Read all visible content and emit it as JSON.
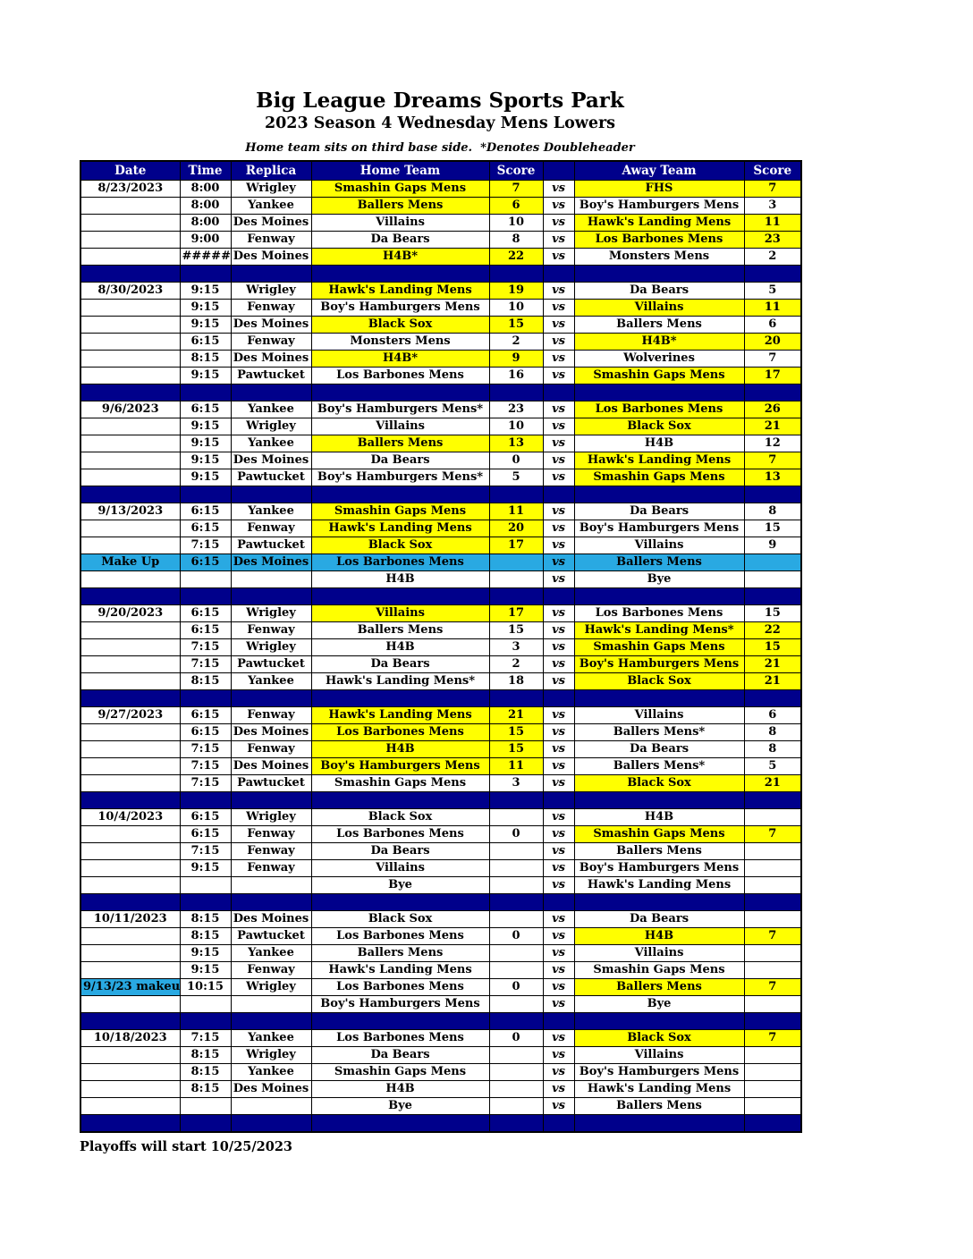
{
  "header": {
    "title": "Big League Dreams Sports Park",
    "subtitle": "2023 Season 4 Wednesday Mens Lowers",
    "note": "Home team sits on third base side.  *Denotes Doubleheader"
  },
  "footer": {
    "text": "Playoffs will start 10/25/2023"
  },
  "colors": {
    "header_navy": "#00008B",
    "winner_yellow": "#FFFF00",
    "makeup_cyan": "#29A9E2"
  },
  "schedule": {
    "columns": [
      "Date",
      "Time",
      "Replica",
      "Home Team",
      "Score",
      "",
      "Away Team",
      "Score"
    ],
    "vs_label": "vs",
    "blocks": [
      {
        "date": "8/23/2023",
        "games": [
          {
            "time": "8:00",
            "replica": "Wrigley",
            "home": "Smashin Gaps Mens",
            "home_score": "7",
            "away": "FHS",
            "away_score": "7",
            "home_win": true,
            "away_win": true
          },
          {
            "time": "8:00",
            "replica": "Yankee",
            "home": "Ballers Mens",
            "home_score": "6",
            "away": "Boy's Hamburgers Mens",
            "away_score": "3",
            "home_win": true
          },
          {
            "time": "8:00",
            "replica": "Des Moines",
            "home": "Villains",
            "home_score": "10",
            "away": "Hawk's Landing Mens",
            "away_score": "11",
            "away_win": true
          },
          {
            "time": "9:00",
            "replica": "Fenway",
            "home": "Da Bears",
            "home_score": "8",
            "away": "Los Barbones Mens",
            "away_score": "23",
            "away_win": true
          },
          {
            "time": "#######",
            "replica": "Des Moines",
            "home": "H4B*",
            "home_score": "22",
            "away": "Monsters Mens",
            "away_score": "2",
            "home_win": true
          }
        ]
      },
      {
        "date": "8/30/2023",
        "games": [
          {
            "time": "9:15",
            "replica": "Wrigley",
            "home": "Hawk's Landing Mens",
            "home_score": "19",
            "away": "Da Bears",
            "away_score": "5",
            "home_win": true
          },
          {
            "time": "9:15",
            "replica": "Fenway",
            "home": "Boy's Hamburgers Mens",
            "home_score": "10",
            "away": "Villains",
            "away_score": "11",
            "away_win": true
          },
          {
            "time": "9:15",
            "replica": "Des Moines",
            "home": "Black Sox",
            "home_score": "15",
            "away": "Ballers Mens",
            "away_score": "6",
            "home_win": true
          },
          {
            "time": "6:15",
            "replica": "Fenway",
            "home": "Monsters Mens",
            "home_score": "2",
            "away": "H4B*",
            "away_score": "20",
            "away_win": true
          },
          {
            "time": "8:15",
            "replica": "Des Moines",
            "home": "H4B*",
            "home_score": "9",
            "away": "Wolverines",
            "away_score": "7",
            "home_win": true
          },
          {
            "time": "9:15",
            "replica": "Pawtucket",
            "home": "Los Barbones Mens",
            "home_score": "16",
            "away": "Smashin Gaps Mens",
            "away_score": "17",
            "away_win": true
          }
        ]
      },
      {
        "date": "9/6/2023",
        "games": [
          {
            "time": "6:15",
            "replica": "Yankee",
            "home": "Boy's Hamburgers Mens*",
            "home_score": "23",
            "away": "Los Barbones Mens",
            "away_score": "26",
            "away_win": true
          },
          {
            "time": "9:15",
            "replica": "Wrigley",
            "home": "Villains",
            "home_score": "10",
            "away": "Black Sox",
            "away_score": "21",
            "away_win": true
          },
          {
            "time": "9:15",
            "replica": "Yankee",
            "home": "Ballers Mens",
            "home_score": "13",
            "away": "H4B",
            "away_score": "12",
            "home_win": true
          },
          {
            "time": "9:15",
            "replica": "Des Moines",
            "home": "Da Bears",
            "home_score": "0",
            "away": "Hawk's Landing Mens",
            "away_score": "7",
            "away_win": true
          },
          {
            "time": "9:15",
            "replica": "Pawtucket",
            "home": "Boy's Hamburgers Mens*",
            "home_score": "5",
            "away": "Smashin Gaps Mens",
            "away_score": "13",
            "away_win": true
          }
        ]
      },
      {
        "date": "9/13/2023",
        "games": [
          {
            "time": "6:15",
            "replica": "Yankee",
            "home": "Smashin Gaps Mens",
            "home_score": "11",
            "away": "Da Bears",
            "away_score": "8",
            "home_win": true
          },
          {
            "time": "6:15",
            "replica": "Fenway",
            "home": "Hawk's Landing Mens",
            "home_score": "20",
            "away": "Boy's Hamburgers Mens",
            "away_score": "15",
            "home_win": true
          },
          {
            "time": "7:15",
            "replica": "Pawtucket",
            "home": "Black Sox",
            "home_score": "17",
            "away": "Villains",
            "away_score": "9",
            "home_win": true
          },
          {
            "date_label": "Make Up",
            "time": "6:15",
            "replica": "Des Moines",
            "home": "Los Barbones Mens",
            "home_score": "",
            "away": "Ballers Mens",
            "away_score": "",
            "makeup_row": true
          },
          {
            "time": "",
            "replica": "",
            "home": "H4B",
            "home_score": "",
            "away": "Bye",
            "away_score": ""
          }
        ]
      },
      {
        "date": "9/20/2023",
        "games": [
          {
            "time": "6:15",
            "replica": "Wrigley",
            "home": "Villains",
            "home_score": "17",
            "away": "Los Barbones Mens",
            "away_score": "15",
            "home_win": true
          },
          {
            "time": "6:15",
            "replica": "Fenway",
            "home": "Ballers Mens",
            "home_score": "15",
            "away": "Hawk's Landing Mens*",
            "away_score": "22",
            "away_win": true
          },
          {
            "time": "7:15",
            "replica": "Wrigley",
            "home": "H4B",
            "home_score": "3",
            "away": "Smashin Gaps Mens",
            "away_score": "15",
            "away_win": true
          },
          {
            "time": "7:15",
            "replica": "Pawtucket",
            "home": "Da Bears",
            "home_score": "2",
            "away": "Boy's Hamburgers Mens",
            "away_score": "21",
            "away_win": true
          },
          {
            "time": "8:15",
            "replica": "Yankee",
            "home": "Hawk's Landing Mens*",
            "home_score": "18",
            "away": "Black Sox",
            "away_score": "21",
            "away_win": true
          }
        ]
      },
      {
        "date": "9/27/2023",
        "games": [
          {
            "time": "6:15",
            "replica": "Fenway",
            "home": "Hawk's Landing Mens",
            "home_score": "21",
            "away": "Villains",
            "away_score": "6",
            "home_win": true
          },
          {
            "time": "6:15",
            "replica": "Des Moines",
            "home": "Los Barbones Mens",
            "home_score": "15",
            "away": "Ballers Mens*",
            "away_score": "8",
            "home_win": true
          },
          {
            "time": "7:15",
            "replica": "Fenway",
            "home": "H4B",
            "home_score": "15",
            "away": "Da Bears",
            "away_score": "8",
            "home_win": true
          },
          {
            "time": "7:15",
            "replica": "Des Moines",
            "home": "Boy's Hamburgers Mens",
            "home_score": "11",
            "away": "Ballers Mens*",
            "away_score": "5",
            "home_win": true
          },
          {
            "time": "7:15",
            "replica": "Pawtucket",
            "home": "Smashin Gaps Mens",
            "home_score": "3",
            "away": "Black Sox",
            "away_score": "21",
            "away_win": true
          }
        ]
      },
      {
        "date": "10/4/2023",
        "games": [
          {
            "time": "6:15",
            "replica": "Wrigley",
            "home": "Black Sox",
            "home_score": "",
            "away": "H4B",
            "away_score": ""
          },
          {
            "time": "6:15",
            "replica": "Fenway",
            "home": "Los Barbones Mens",
            "home_score": "0",
            "away": "Smashin Gaps Mens",
            "away_score": "7",
            "away_win": true
          },
          {
            "time": "7:15",
            "replica": "Fenway",
            "home": "Da Bears",
            "home_score": "",
            "away": "Ballers Mens",
            "away_score": ""
          },
          {
            "time": "9:15",
            "replica": "Fenway",
            "home": "Villains",
            "home_score": "",
            "away": "Boy's Hamburgers Mens",
            "away_score": ""
          },
          {
            "time": "",
            "replica": "",
            "home": "Bye",
            "home_score": "",
            "away": "Hawk's Landing Mens",
            "away_score": ""
          }
        ]
      },
      {
        "date": "10/11/2023",
        "games": [
          {
            "time": "8:15",
            "replica": "Des Moines",
            "home": "Black Sox",
            "home_score": "",
            "away": "Da Bears",
            "away_score": ""
          },
          {
            "time": "8:15",
            "replica": "Pawtucket",
            "home": "Los Barbones Mens",
            "home_score": "0",
            "away": "H4B",
            "away_score": "7",
            "away_win": true
          },
          {
            "time": "9:15",
            "replica": "Yankee",
            "home": "Ballers Mens",
            "home_score": "",
            "away": "Villains",
            "away_score": ""
          },
          {
            "time": "9:15",
            "replica": "Fenway",
            "home": "Hawk's Landing Mens",
            "home_score": "",
            "away": "Smashin Gaps Mens",
            "away_score": ""
          },
          {
            "date_label": "9/13/23 makeup",
            "date_cyan": true,
            "time": "10:15",
            "replica": "Wrigley",
            "home": "Los Barbones Mens",
            "home_score": "0",
            "away": "Ballers Mens",
            "away_score": "7",
            "away_win": true
          },
          {
            "time": "",
            "replica": "",
            "home": "Boy's Hamburgers Mens",
            "home_score": "",
            "away": "Bye",
            "away_score": ""
          }
        ]
      },
      {
        "date": "10/18/2023",
        "games": [
          {
            "time": "7:15",
            "replica": "Yankee",
            "home": "Los Barbones Mens",
            "home_score": "0",
            "away": "Black Sox",
            "away_score": "7",
            "away_win": true
          },
          {
            "time": "8:15",
            "replica": "Wrigley",
            "home": "Da Bears",
            "home_score": "",
            "away": "Villains",
            "away_score": ""
          },
          {
            "time": "8:15",
            "replica": "Yankee",
            "home": "Smashin Gaps Mens",
            "home_score": "",
            "away": "Boy's Hamburgers Mens",
            "away_score": ""
          },
          {
            "time": "8:15",
            "replica": "Des Moines",
            "home": "H4B",
            "home_score": "",
            "away": "Hawk's Landing Mens",
            "away_score": ""
          },
          {
            "time": "",
            "replica": "",
            "home": "Bye",
            "home_score": "",
            "away": "Ballers Mens",
            "away_score": ""
          }
        ]
      }
    ]
  }
}
